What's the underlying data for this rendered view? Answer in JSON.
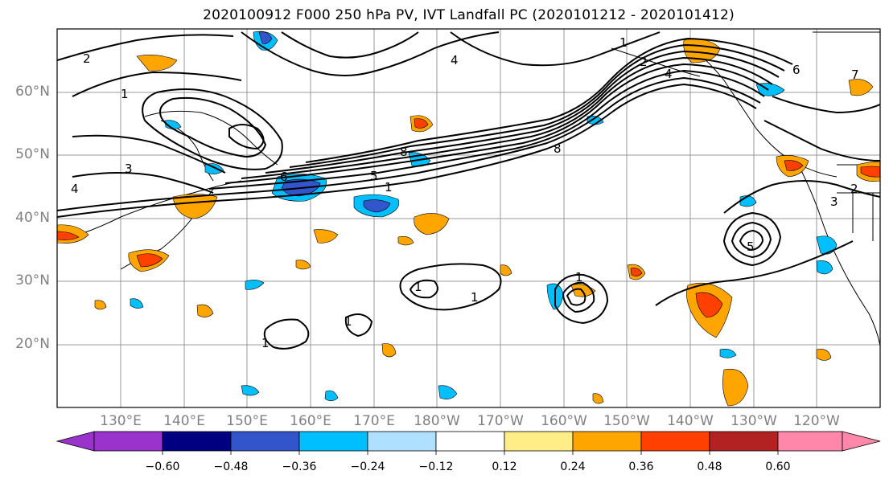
{
  "title": "2020100912 F000 250 hPa PV, IVT Landfall PC (2020101212 - 2020101412)",
  "map": {
    "lat_labels": [
      "60°N",
      "50°N",
      "40°N",
      "30°N",
      "20°N"
    ],
    "lon_labels": [
      "130°E",
      "140°E",
      "150°E",
      "160°E",
      "170°E",
      "180°W",
      "170°W",
      "160°W",
      "150°W",
      "140°W",
      "130°W",
      "120°W"
    ],
    "contour_labels": [
      "1",
      "2",
      "3",
      "4",
      "5",
      "6",
      "7",
      "8",
      "1",
      "1",
      "2",
      "1",
      "1",
      "1",
      "1",
      "3",
      "2",
      "4",
      "6",
      "8",
      "5",
      "4",
      "1"
    ]
  },
  "colorbar": {
    "ticks": [
      "−0.60",
      "−0.48",
      "−0.36",
      "−0.24",
      "−0.12",
      "0.12",
      "0.24",
      "0.36",
      "0.48",
      "0.60"
    ],
    "colors": [
      "#9933cc",
      "#000080",
      "#3355cc",
      "#00bfff",
      "#b0e0ff",
      "#ffffff",
      "#ffee88",
      "#ffa500",
      "#ff4000",
      "#b22222",
      "#ff88aa"
    ]
  }
}
